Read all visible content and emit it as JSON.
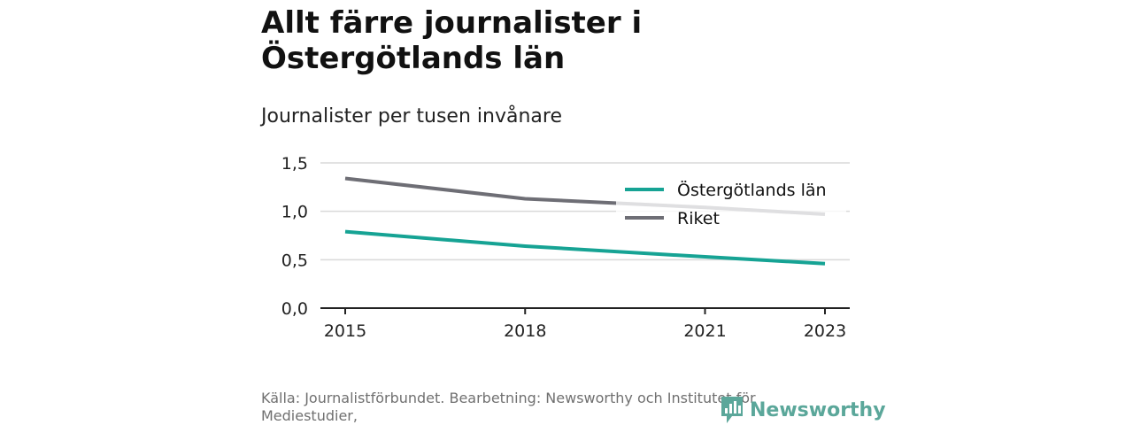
{
  "chart_data": {
    "type": "line",
    "title": "Allt färre journalister i Östergötlands län",
    "subtitle": "Journalister per tusen invånare",
    "x": [
      2015,
      2018,
      2021,
      2023
    ],
    "x_ticks": [
      "2015",
      "2018",
      "2021",
      "2023"
    ],
    "y_ticks": [
      "0,0",
      "0,5",
      "1,0",
      "1,5"
    ],
    "ylim": [
      0,
      1.5
    ],
    "grid": true,
    "legend_position": "top-right",
    "series": [
      {
        "name": "Östergötlands län",
        "color": "#16a394",
        "values": [
          0.79,
          0.64,
          0.53,
          0.46
        ]
      },
      {
        "name": "Riket",
        "color": "#6e6e75",
        "values": [
          1.34,
          1.13,
          1.04,
          0.97
        ]
      }
    ]
  },
  "footer": {
    "source": "Källa: Journalistförbundet. Bearbetning: Newsworthy och Institutet för Mediestudier,"
  },
  "brand": {
    "name": "Newsworthy",
    "color": "#5ba79a",
    "icon": "newsworthy-logo-icon"
  }
}
